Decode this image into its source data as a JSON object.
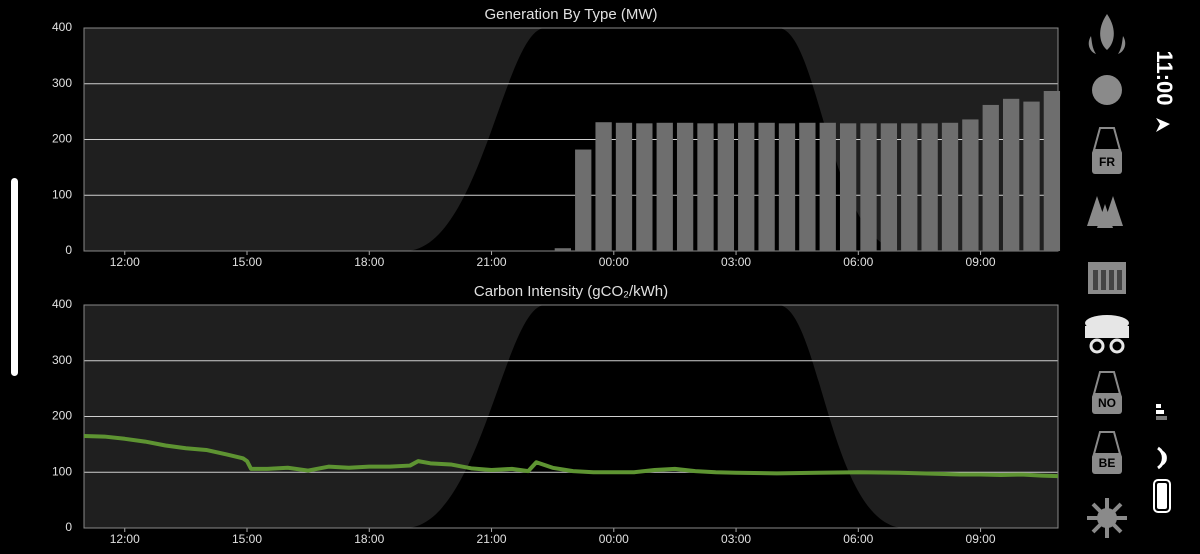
{
  "chart_data": [
    {
      "type": "bar",
      "title": "Generation By Type (MW)",
      "x": [
        10.75,
        11.25,
        11.75,
        12.25,
        12.75,
        13.25,
        13.75,
        14.25,
        14.75,
        15.25,
        15.75,
        16.25,
        16.75,
        17.25,
        17.75,
        18.25,
        18.75,
        19.25,
        19.75,
        20.25,
        20.75,
        21.25,
        21.75,
        22.25,
        22.75
      ],
      "values": [
        5,
        182,
        231,
        230,
        229,
        230,
        230,
        229,
        229,
        230,
        230,
        229,
        230,
        230,
        229,
        229,
        229,
        229,
        229,
        230,
        236,
        262,
        273,
        268,
        287
      ],
      "color": "#6e6e6e",
      "xlim": [
        -1.0,
        22.9
      ],
      "xticks": [
        {
          "value": 0,
          "label": "12:00"
        },
        {
          "value": 3,
          "label": "15:00"
        },
        {
          "value": 6,
          "label": "18:00"
        },
        {
          "value": 9,
          "label": "21:00"
        },
        {
          "value": 12,
          "label": "00:00"
        },
        {
          "value": 15,
          "label": "03:00"
        },
        {
          "value": 18,
          "label": "06:00"
        },
        {
          "value": 21,
          "label": "09:00"
        }
      ],
      "ylim": [
        0,
        400
      ],
      "yticks": [
        0,
        100,
        200,
        300,
        400
      ],
      "grid": true
    },
    {
      "type": "line",
      "title": "Carbon Intensity (gCO₂/kWh)",
      "x": [
        -1,
        -0.5,
        0,
        0.5,
        1,
        1.5,
        2,
        2.5,
        2.9,
        3,
        3.1,
        3.5,
        4,
        4.5,
        5,
        5.5,
        6,
        6.5,
        7,
        7.2,
        7.5,
        8,
        8.5,
        9,
        9.5,
        9.9,
        10.1,
        10.5,
        11,
        11.5,
        12,
        12.5,
        13,
        13.5,
        14,
        14.5,
        15,
        16,
        17,
        18,
        19,
        20,
        20.5,
        21,
        21.5,
        22,
        22.5,
        22.9
      ],
      "values": [
        165,
        164,
        160,
        155,
        148,
        143,
        140,
        132,
        125,
        120,
        106,
        106,
        108,
        103,
        110,
        108,
        110,
        110,
        112,
        120,
        116,
        114,
        107,
        104,
        106,
        102,
        118,
        108,
        102,
        100,
        100,
        100,
        104,
        106,
        102,
        100,
        99,
        98,
        99,
        100,
        99,
        97,
        96,
        96,
        95,
        96,
        94,
        93
      ],
      "color": "#5e9432",
      "xlim": [
        -1.0,
        22.9
      ],
      "xticks": [
        {
          "value": 0,
          "label": "12:00"
        },
        {
          "value": 3,
          "label": "15:00"
        },
        {
          "value": 6,
          "label": "18:00"
        },
        {
          "value": 9,
          "label": "21:00"
        },
        {
          "value": 12,
          "label": "00:00"
        },
        {
          "value": 15,
          "label": "03:00"
        },
        {
          "value": 18,
          "label": "06:00"
        },
        {
          "value": 21,
          "label": "09:00"
        }
      ],
      "ylim": [
        0,
        400
      ],
      "yticks": [
        0,
        100,
        200,
        300,
        400
      ],
      "grid": true
    }
  ],
  "sidebar": {
    "labels": [
      "FR",
      "NO",
      "BE"
    ]
  },
  "status_bar": {
    "time": "11:00"
  }
}
